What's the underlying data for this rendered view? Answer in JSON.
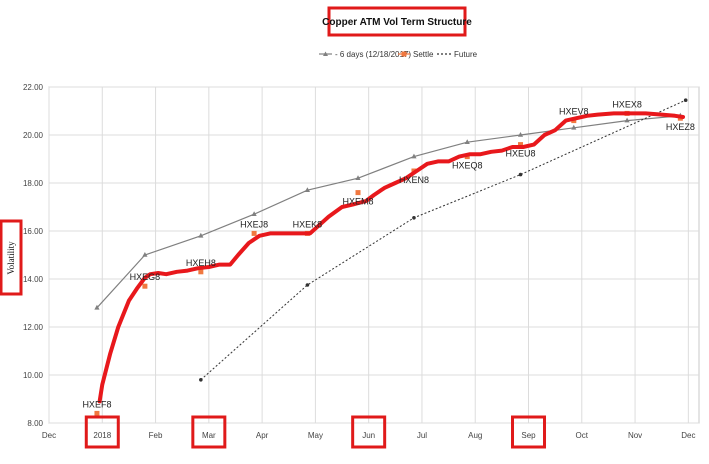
{
  "chart_data": {
    "type": "line",
    "title": "Copper ATM Vol Term Structure",
    "ylabel": "Volatility",
    "xlabel": "",
    "ylim": [
      8,
      22
    ],
    "yticks": [
      "8.00",
      "10.00",
      "12.00",
      "14.00",
      "16.00",
      "18.00",
      "20.00",
      "22.00"
    ],
    "xlim": [
      0,
      12.2
    ],
    "xticks": [
      {
        "label": "Dec",
        "x": 0
      },
      {
        "label": "2018",
        "x": 1
      },
      {
        "label": "Feb",
        "x": 2
      },
      {
        "label": "Mar",
        "x": 3
      },
      {
        "label": "Apr",
        "x": 4
      },
      {
        "label": "May",
        "x": 5
      },
      {
        "label": "Jun",
        "x": 6
      },
      {
        "label": "Jul",
        "x": 7
      },
      {
        "label": "Aug",
        "x": 8
      },
      {
        "label": "Sep",
        "x": 9
      },
      {
        "label": "Oct",
        "x": 10
      },
      {
        "label": "Nov",
        "x": 11
      },
      {
        "label": "Dec",
        "x": 12
      }
    ],
    "highlighted_ticks": [
      "2018",
      "Mar",
      "Jun",
      "Sep"
    ],
    "grid": true,
    "legend_position": "top-center",
    "series": [
      {
        "name": "- 6 days (12/18/2017)",
        "style": "gray-line-triangles",
        "color": "#808080",
        "x": [
          0.9,
          1.8,
          2.85,
          3.85,
          4.85,
          5.8,
          6.85,
          7.85,
          8.85,
          9.85,
          10.85,
          11.85
        ],
        "y": [
          12.8,
          15.0,
          15.8,
          16.7,
          17.7,
          18.2,
          19.1,
          19.7,
          20.0,
          20.3,
          20.6,
          20.8
        ]
      },
      {
        "name": "Settle",
        "style": "orange-points",
        "color": "#f07840",
        "x": [
          0.9,
          1.8,
          2.85,
          3.85,
          4.85,
          5.8,
          6.85,
          7.85,
          8.85,
          9.85,
          10.85,
          11.85
        ],
        "y": [
          8.4,
          13.7,
          14.3,
          15.9,
          15.9,
          17.6,
          18.5,
          19.1,
          19.6,
          20.6,
          20.9,
          20.7
        ]
      },
      {
        "name": "Future",
        "style": "black-dashed-dots",
        "color": "#333333",
        "x": [
          2.85,
          4.85,
          6.85,
          8.85,
          11.95
        ],
        "y": [
          9.8,
          13.75,
          16.55,
          18.35,
          21.45
        ]
      }
    ],
    "fitted_curve": {
      "color": "#e8181c",
      "x": [
        0.95,
        1.0,
        1.15,
        1.3,
        1.5,
        1.65,
        1.8,
        1.9,
        2.05,
        2.2,
        2.4,
        2.6,
        2.8,
        3.0,
        3.2,
        3.4,
        3.55,
        3.75,
        3.95,
        4.15,
        4.35,
        4.6,
        4.9,
        5.05,
        5.25,
        5.5,
        5.7,
        5.95,
        6.1,
        6.3,
        6.5,
        6.7,
        6.9,
        7.1,
        7.3,
        7.5,
        7.7,
        7.9,
        8.1,
        8.3,
        8.5,
        8.7,
        8.9,
        9.1,
        9.3,
        9.5,
        9.7,
        9.9,
        10.1,
        10.3,
        10.6,
        10.9,
        11.2,
        11.5,
        11.75,
        11.9
      ],
      "y": [
        8.9,
        9.6,
        10.9,
        12.0,
        13.1,
        13.6,
        14.05,
        14.2,
        14.25,
        14.2,
        14.3,
        14.35,
        14.45,
        14.5,
        14.6,
        14.6,
        15.0,
        15.5,
        15.8,
        15.9,
        15.9,
        15.9,
        15.9,
        16.2,
        16.6,
        17.0,
        17.1,
        17.25,
        17.5,
        17.8,
        18.0,
        18.2,
        18.5,
        18.8,
        18.9,
        18.9,
        19.1,
        19.2,
        19.2,
        19.3,
        19.35,
        19.5,
        19.5,
        19.6,
        20.0,
        20.2,
        20.6,
        20.7,
        20.8,
        20.85,
        20.9,
        20.9,
        20.9,
        20.85,
        20.8,
        20.75
      ]
    },
    "annotations": [
      {
        "text": "HXEF8",
        "x": 0.9,
        "y": 8.4,
        "pos": "above"
      },
      {
        "text": "HXEG8",
        "x": 1.8,
        "y": 13.7,
        "pos": "above"
      },
      {
        "text": "HXEH8",
        "x": 2.85,
        "y": 14.3,
        "pos": "above"
      },
      {
        "text": "HXEJ8",
        "x": 3.85,
        "y": 15.9,
        "pos": "above"
      },
      {
        "text": "HXEK8",
        "x": 4.85,
        "y": 15.9,
        "pos": "above"
      },
      {
        "text": "HXEM8",
        "x": 5.8,
        "y": 17.6,
        "pos": "below"
      },
      {
        "text": "HXEN8",
        "x": 6.85,
        "y": 18.5,
        "pos": "below"
      },
      {
        "text": "HXEQ8",
        "x": 7.85,
        "y": 19.1,
        "pos": "below"
      },
      {
        "text": "HXEU8",
        "x": 8.85,
        "y": 19.6,
        "pos": "below"
      },
      {
        "text": "HXEV8",
        "x": 9.85,
        "y": 20.6,
        "pos": "above"
      },
      {
        "text": "HXEX8",
        "x": 10.85,
        "y": 20.9,
        "pos": "above"
      },
      {
        "text": "HXEZ8",
        "x": 11.85,
        "y": 20.7,
        "pos": "below"
      }
    ]
  }
}
